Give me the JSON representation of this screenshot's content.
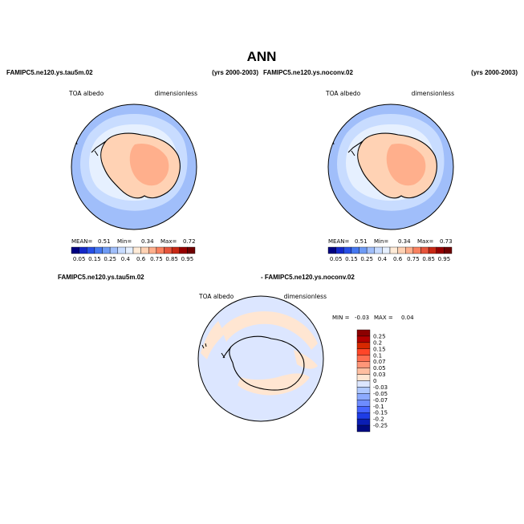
{
  "figure": {
    "title": "ANN",
    "period": "(yrs 2000-2003)"
  },
  "chart_data": [
    {
      "type": "heatmap",
      "projection": "south-polar-stereographic",
      "case": "FAMIPC5.ne120.ys.tau5m.02",
      "period": "(yrs 2000-2003)",
      "variable": "TOA albedo",
      "units": "dimensionless",
      "stats": {
        "mean_label": "MEAN=",
        "mean": "0.51",
        "min_label": "Min=",
        "min": "0.34",
        "max_label": "Max=",
        "max": "0.72"
      },
      "levels": [
        "0.05",
        "0.15",
        "0.25",
        "0.4",
        "0.6",
        "0.75",
        "0.85",
        "0.95"
      ],
      "colors": [
        "#000080",
        "#1428C8",
        "#2850E6",
        "#4678F0",
        "#6E9BF5",
        "#A0BEFA",
        "#C8DCFF",
        "#E6F0FF",
        "#FFEBD7",
        "#FFD2B4",
        "#FFAF8C",
        "#FA8260",
        "#E6553C",
        "#C82814",
        "#960000",
        "#6E0000"
      ]
    },
    {
      "type": "heatmap",
      "projection": "south-polar-stereographic",
      "case": "FAMIPC5.ne120.ys.noconv.02",
      "period": "(yrs 2000-2003)",
      "variable": "TOA albedo",
      "units": "dimensionless",
      "stats": {
        "mean_label": "MEAN=",
        "mean": "0.51",
        "min_label": "Min=",
        "min": "0.34",
        "max_label": "Max=",
        "max": "0.73"
      },
      "levels": [
        "0.05",
        "0.15",
        "0.25",
        "0.4",
        "0.6",
        "0.75",
        "0.85",
        "0.95"
      ],
      "colors": [
        "#000080",
        "#1428C8",
        "#2850E6",
        "#4678F0",
        "#6E9BF5",
        "#A0BEFA",
        "#C8DCFF",
        "#E6F0FF",
        "#FFEBD7",
        "#FFD2B4",
        "#FFAF8C",
        "#FA8260",
        "#E6553C",
        "#C82814",
        "#960000",
        "#6E0000"
      ]
    },
    {
      "type": "heatmap",
      "projection": "south-polar-stereographic",
      "case_a": "FAMIPC5.ne120.ys.tau5m.02",
      "case_b": "- FAMIPC5.ne120.ys.noconv.02",
      "variable": "TOA albedo",
      "units": "dimensionless",
      "stats": {
        "min_label": "MIN =",
        "min": "-0.03",
        "max_label": "MAX =",
        "max": "0.04"
      },
      "levels": [
        "0.25",
        "0.2",
        "0.15",
        "0.1",
        "0.07",
        "0.05",
        "0.03",
        "0",
        "-0.03",
        "-0.05",
        "-0.07",
        "-0.1",
        "-0.15",
        "-0.2",
        "-0.25"
      ],
      "colors": [
        "#8C0000",
        "#B40000",
        "#D72800",
        "#FF4628",
        "#FF6E50",
        "#FF9678",
        "#FFBEA0",
        "#FFE6D2",
        "#DCE6FF",
        "#AFC8FF",
        "#8CAAFF",
        "#6E8CFF",
        "#4664FF",
        "#1E3CE6",
        "#0A1EB4",
        "#000A82"
      ]
    }
  ]
}
